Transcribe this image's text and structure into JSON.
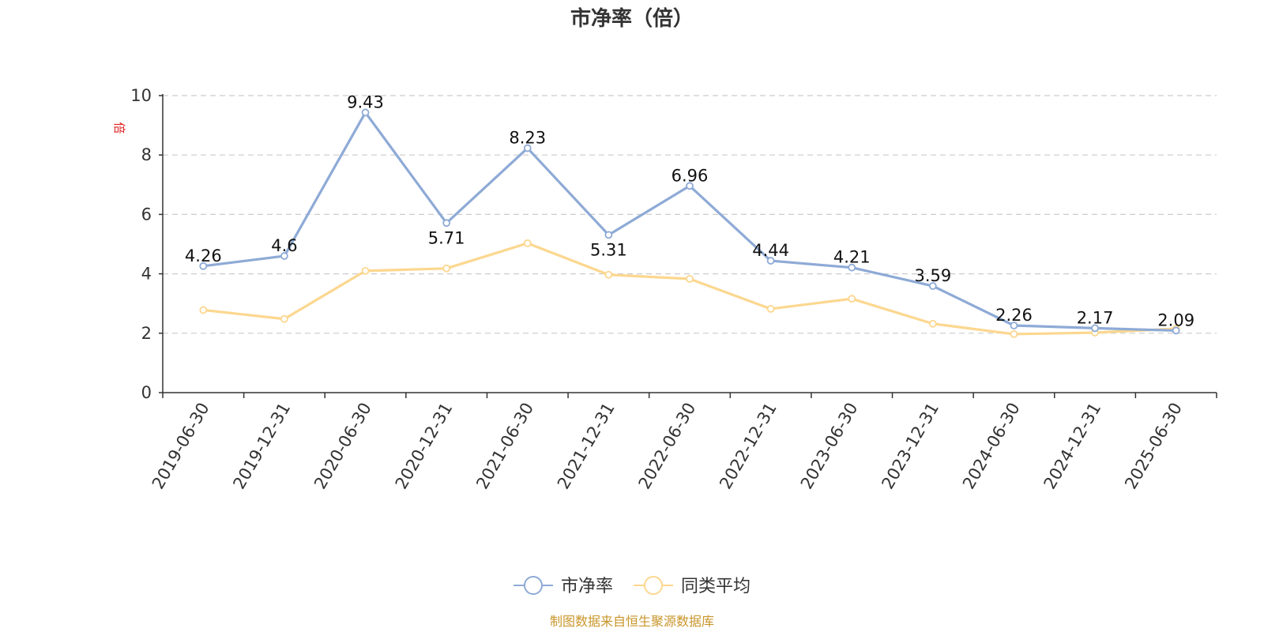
{
  "chart_data": {
    "type": "line",
    "title": "市净率（倍）",
    "ylabel": "倍",
    "ylim": [
      0,
      10
    ],
    "yticks": [
      0,
      2,
      4,
      6,
      8,
      10
    ],
    "categories": [
      "2019-06-30",
      "2019-12-31",
      "2020-06-30",
      "2020-12-31",
      "2021-06-30",
      "2021-12-31",
      "2022-06-30",
      "2022-12-31",
      "2023-06-30",
      "2023-12-31",
      "2024-06-30",
      "2024-12-31",
      "2025-06-30"
    ],
    "series": [
      {
        "name": "市净率",
        "color": "#8eaad6",
        "values": [
          4.26,
          4.6,
          9.43,
          5.71,
          8.23,
          5.31,
          6.96,
          4.44,
          4.21,
          3.59,
          2.26,
          2.17,
          2.09
        ],
        "labels": [
          "4.26",
          "4.6",
          "9.43",
          "5.71",
          "8.23",
          "5.31",
          "6.96",
          "4.44",
          "4.21",
          "3.59",
          "2.26",
          "2.17",
          "2.09"
        ]
      },
      {
        "name": "同类平均",
        "color": "#fcd78f",
        "values": [
          2.78,
          2.48,
          4.1,
          4.18,
          5.03,
          3.97,
          3.83,
          2.82,
          3.16,
          2.32,
          1.97,
          2.02,
          2.15
        ]
      }
    ],
    "grid": true,
    "legend_position": "bottom-center",
    "colors": {
      "axis": "#333333",
      "grid": "#cccccc",
      "unit_label": "#e02020",
      "source": "#c9962a"
    }
  },
  "footer": {
    "source": "制图数据来自恒生聚源数据库"
  }
}
